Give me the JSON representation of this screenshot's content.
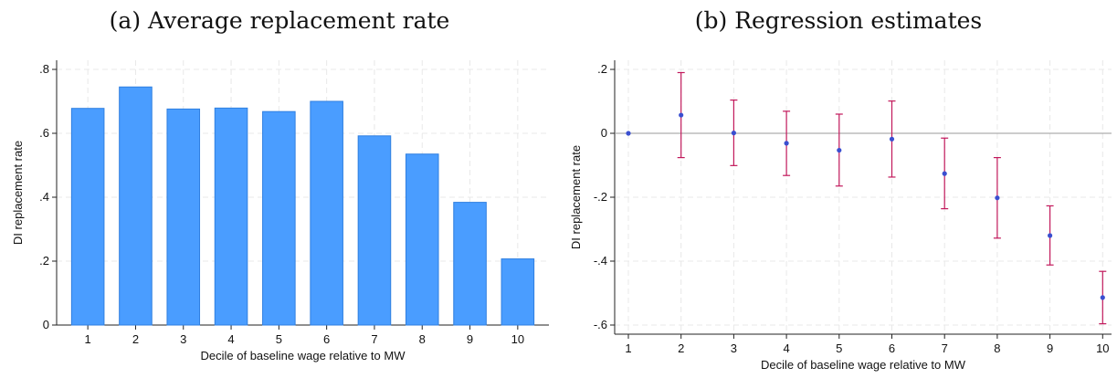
{
  "chart_data": [
    {
      "type": "bar",
      "panel": "a",
      "title": "(a) Average replacement rate",
      "xlabel": "Decile of baseline wage relative to MW",
      "ylabel": "DI replacement rate",
      "categories": [
        "1",
        "2",
        "3",
        "4",
        "5",
        "6",
        "7",
        "8",
        "9",
        "10"
      ],
      "values": [
        0.678,
        0.745,
        0.676,
        0.679,
        0.668,
        0.7,
        0.592,
        0.535,
        0.384,
        0.207
      ],
      "ylim": [
        0,
        0.8
      ],
      "yticks": [
        0,
        0.2,
        0.4,
        0.6,
        0.8
      ],
      "ytick_labels": [
        "0",
        ".2",
        ".4",
        ".6",
        ".8"
      ],
      "bar_color": "#4a9dff",
      "bar_edge_color": "#2f7fe0",
      "grid": true
    },
    {
      "type": "scatter",
      "subtype": "coefficient-plot-with-error-bars",
      "panel": "b",
      "title": "(b) Regression estimates",
      "xlabel": "Decile of baseline wage relative to MW",
      "ylabel": "DI replacement rate",
      "x": [
        1,
        2,
        3,
        4,
        5,
        6,
        7,
        8,
        9,
        10
      ],
      "values": [
        0.0,
        0.057,
        0.001,
        -0.031,
        -0.053,
        -0.018,
        -0.126,
        -0.202,
        -0.32,
        -0.514
      ],
      "ci_low": [
        0.0,
        -0.076,
        -0.101,
        -0.132,
        -0.165,
        -0.137,
        -0.236,
        -0.328,
        -0.412,
        -0.596
      ],
      "ci_high": [
        0.0,
        0.19,
        0.104,
        0.069,
        0.06,
        0.101,
        -0.015,
        -0.076,
        -0.227,
        -0.432
      ],
      "ylim": [
        -0.62,
        0.22
      ],
      "yticks": [
        -0.6,
        -0.4,
        -0.2,
        0,
        0.2
      ],
      "ytick_labels": [
        "-.6",
        "-.4",
        "-.2",
        "0",
        ".2"
      ],
      "reference_line": 0,
      "point_color": "#3a4fd0",
      "errorbar_color": "#c2185b",
      "grid": true
    }
  ]
}
